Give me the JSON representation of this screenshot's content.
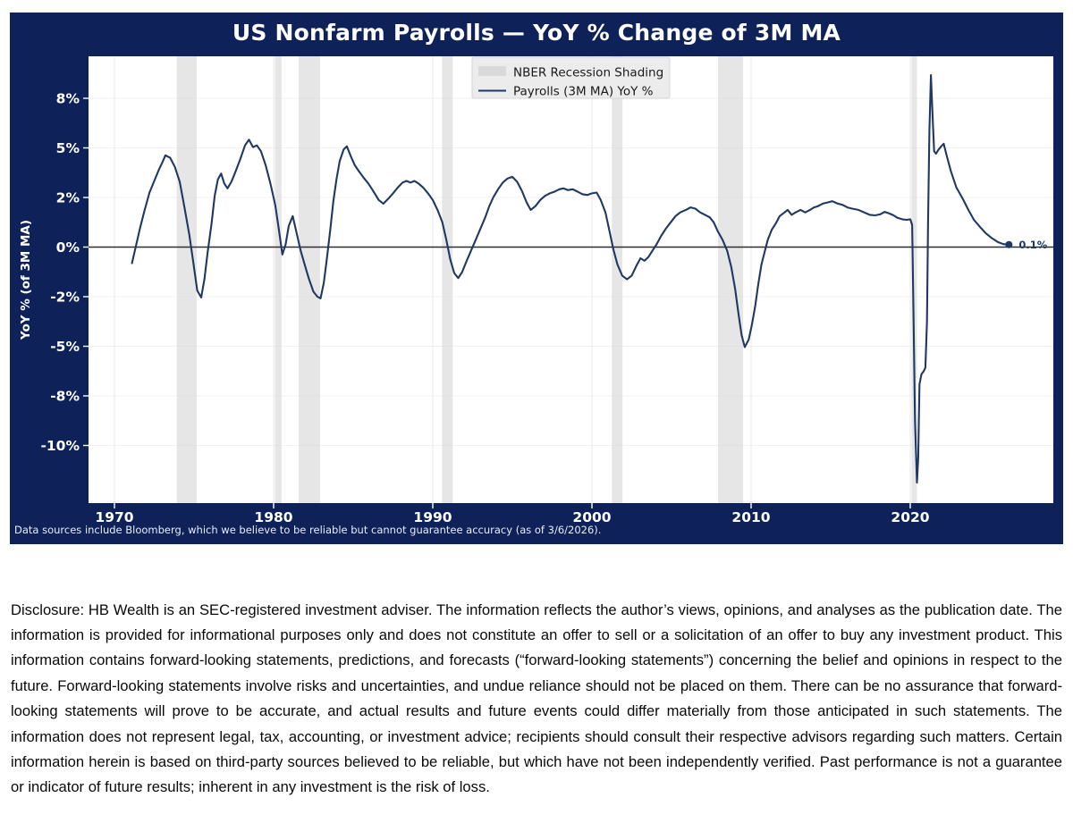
{
  "figure": {
    "title": "US Nonfarm Payrolls — YoY % Change of 3M MA",
    "footer": "Data sources include Bloomberg, which we believe to be reliable but cannot guarantee accuracy (as of 3/6/2026).",
    "colors": {
      "figure_background": "#0e2259",
      "plot_background": "#ffffff",
      "line": "#1f3864",
      "recession_band": "#d9d9d9",
      "zero_line": "#2f2f2f",
      "grid_horizontal": "#f1f1f4",
      "grid_vertical": "#e8e8e8",
      "tick_text": "#ffffff",
      "legend_background": "#ececec",
      "legend_border": "#d5d5d5",
      "legend_text": "#1a1a1a",
      "annotation_text": "#1f3864"
    }
  },
  "chart_data": {
    "type": "line",
    "title": "US Nonfarm Payrolls — YoY % Change of 3M MA",
    "xlabel": "",
    "ylabel": "YoY % (of 3M MA)",
    "x_ticks": [
      1970,
      1980,
      1990,
      2000,
      2010,
      2020
    ],
    "y_ticks": [
      8,
      5,
      2,
      0,
      -2,
      -5,
      -8,
      -10
    ],
    "y_tick_labels": [
      "8%",
      "5%",
      "2%",
      "0%",
      "-2%",
      "-5%",
      "-8%",
      "-10%"
    ],
    "x_range_years": [
      1968.4,
      2029.0
    ],
    "grid": true,
    "legend_position": "upper center",
    "legend": [
      {
        "label": "NBER Recession Shading",
        "swatch": "patch"
      },
      {
        "label": "Payrolls (3M MA) YoY %",
        "swatch": "line"
      }
    ],
    "recessions": [
      [
        1973.92,
        1975.17
      ],
      [
        1980.08,
        1980.5
      ],
      [
        1981.58,
        1982.92
      ],
      [
        1990.58,
        1991.25
      ],
      [
        2001.25,
        2001.92
      ],
      [
        2007.92,
        2009.5
      ],
      [
        2020.08,
        2020.42
      ]
    ],
    "end_annotation": {
      "label": "0.1%",
      "year": 2026.2,
      "value": 0.1
    },
    "series": [
      {
        "name": "Payrolls (3M MA) YoY %",
        "points": [
          [
            1971.1,
            -0.65
          ],
          [
            1971.3,
            -0.1
          ],
          [
            1971.6,
            0.75
          ],
          [
            1971.9,
            1.5
          ],
          [
            1972.2,
            2.3
          ],
          [
            1972.5,
            3.0
          ],
          [
            1972.8,
            3.7
          ],
          [
            1973.0,
            4.1
          ],
          [
            1973.2,
            4.55
          ],
          [
            1973.5,
            4.4
          ],
          [
            1973.8,
            3.85
          ],
          [
            1974.1,
            2.95
          ],
          [
            1974.4,
            1.6
          ],
          [
            1974.7,
            0.5
          ],
          [
            1974.95,
            -0.6
          ],
          [
            1975.2,
            -1.75
          ],
          [
            1975.45,
            -2.05
          ],
          [
            1975.65,
            -1.3
          ],
          [
            1975.85,
            -0.25
          ],
          [
            1976.1,
            0.95
          ],
          [
            1976.3,
            2.1
          ],
          [
            1976.5,
            3.1
          ],
          [
            1976.7,
            3.45
          ],
          [
            1976.9,
            2.85
          ],
          [
            1977.1,
            2.55
          ],
          [
            1977.35,
            2.95
          ],
          [
            1977.6,
            3.55
          ],
          [
            1977.9,
            4.3
          ],
          [
            1978.2,
            5.15
          ],
          [
            1978.45,
            5.5
          ],
          [
            1978.7,
            5.05
          ],
          [
            1978.95,
            5.15
          ],
          [
            1979.2,
            4.8
          ],
          [
            1979.5,
            3.95
          ],
          [
            1979.8,
            2.85
          ],
          [
            1980.1,
            1.7
          ],
          [
            1980.3,
            0.85
          ],
          [
            1980.55,
            -0.3
          ],
          [
            1980.75,
            0.1
          ],
          [
            1980.95,
            0.85
          ],
          [
            1981.2,
            1.25
          ],
          [
            1981.45,
            0.55
          ],
          [
            1981.7,
            -0.15
          ],
          [
            1981.95,
            -0.7
          ],
          [
            1982.2,
            -1.25
          ],
          [
            1982.5,
            -1.8
          ],
          [
            1982.75,
            -2.0
          ],
          [
            1982.95,
            -2.1
          ],
          [
            1983.15,
            -1.45
          ],
          [
            1983.35,
            -0.45
          ],
          [
            1983.55,
            0.65
          ],
          [
            1983.75,
            1.85
          ],
          [
            1983.95,
            3.1
          ],
          [
            1984.15,
            4.2
          ],
          [
            1984.4,
            4.9
          ],
          [
            1984.6,
            5.1
          ],
          [
            1984.85,
            4.5
          ],
          [
            1985.1,
            3.95
          ],
          [
            1985.35,
            3.6
          ],
          [
            1985.65,
            3.2
          ],
          [
            1985.95,
            2.85
          ],
          [
            1986.25,
            2.4
          ],
          [
            1986.6,
            1.9
          ],
          [
            1986.9,
            1.75
          ],
          [
            1987.2,
            1.95
          ],
          [
            1987.5,
            2.25
          ],
          [
            1987.8,
            2.6
          ],
          [
            1988.1,
            2.9
          ],
          [
            1988.35,
            3.0
          ],
          [
            1988.6,
            2.9
          ],
          [
            1988.85,
            3.0
          ],
          [
            1989.1,
            2.85
          ],
          [
            1989.4,
            2.6
          ],
          [
            1989.7,
            2.25
          ],
          [
            1990.0,
            1.9
          ],
          [
            1990.3,
            1.5
          ],
          [
            1990.6,
            1.0
          ],
          [
            1990.85,
            0.3
          ],
          [
            1991.1,
            -0.5
          ],
          [
            1991.35,
            -1.05
          ],
          [
            1991.6,
            -1.25
          ],
          [
            1991.85,
            -1.0
          ],
          [
            1992.1,
            -0.6
          ],
          [
            1992.4,
            -0.15
          ],
          [
            1992.7,
            0.3
          ],
          [
            1993.0,
            0.75
          ],
          [
            1993.3,
            1.2
          ],
          [
            1993.55,
            1.65
          ],
          [
            1993.8,
            2.0
          ],
          [
            1994.1,
            2.5
          ],
          [
            1994.4,
            2.9
          ],
          [
            1994.7,
            3.15
          ],
          [
            1995.0,
            3.25
          ],
          [
            1995.3,
            2.95
          ],
          [
            1995.6,
            2.4
          ],
          [
            1995.9,
            1.8
          ],
          [
            1996.15,
            1.5
          ],
          [
            1996.45,
            1.65
          ],
          [
            1996.75,
            1.9
          ],
          [
            1997.05,
            2.1
          ],
          [
            1997.35,
            2.25
          ],
          [
            1997.65,
            2.35
          ],
          [
            1997.95,
            2.5
          ],
          [
            1998.2,
            2.55
          ],
          [
            1998.5,
            2.45
          ],
          [
            1998.8,
            2.5
          ],
          [
            1999.1,
            2.35
          ],
          [
            1999.4,
            2.2
          ],
          [
            1999.7,
            2.15
          ],
          [
            2000.0,
            2.25
          ],
          [
            2000.3,
            2.3
          ],
          [
            2000.55,
            1.9
          ],
          [
            2000.85,
            1.4
          ],
          [
            2001.1,
            0.65
          ],
          [
            2001.35,
            -0.1
          ],
          [
            2001.6,
            -0.7
          ],
          [
            2001.9,
            -1.15
          ],
          [
            2002.2,
            -1.3
          ],
          [
            2002.5,
            -1.15
          ],
          [
            2002.8,
            -0.75
          ],
          [
            2003.05,
            -0.45
          ],
          [
            2003.3,
            -0.55
          ],
          [
            2003.55,
            -0.4
          ],
          [
            2003.8,
            -0.15
          ],
          [
            2004.05,
            0.1
          ],
          [
            2004.35,
            0.45
          ],
          [
            2004.65,
            0.75
          ],
          [
            2004.95,
            1.0
          ],
          [
            2005.25,
            1.25
          ],
          [
            2005.55,
            1.4
          ],
          [
            2005.9,
            1.5
          ],
          [
            2006.2,
            1.6
          ],
          [
            2006.5,
            1.55
          ],
          [
            2006.8,
            1.4
          ],
          [
            2007.1,
            1.3
          ],
          [
            2007.4,
            1.2
          ],
          [
            2007.65,
            1.0
          ],
          [
            2007.9,
            0.65
          ],
          [
            2008.2,
            0.3
          ],
          [
            2008.5,
            -0.15
          ],
          [
            2008.75,
            -0.8
          ],
          [
            2009.0,
            -1.7
          ],
          [
            2009.2,
            -3.0
          ],
          [
            2009.4,
            -4.3
          ],
          [
            2009.6,
            -5.05
          ],
          [
            2009.85,
            -4.6
          ],
          [
            2010.05,
            -3.7
          ],
          [
            2010.25,
            -2.6
          ],
          [
            2010.45,
            -1.5
          ],
          [
            2010.65,
            -0.7
          ],
          [
            2010.85,
            -0.2
          ],
          [
            2011.05,
            0.3
          ],
          [
            2011.3,
            0.7
          ],
          [
            2011.55,
            0.95
          ],
          [
            2011.8,
            1.25
          ],
          [
            2012.1,
            1.4
          ],
          [
            2012.3,
            1.5
          ],
          [
            2012.55,
            1.3
          ],
          [
            2012.8,
            1.4
          ],
          [
            2013.1,
            1.5
          ],
          [
            2013.4,
            1.4
          ],
          [
            2013.7,
            1.5
          ],
          [
            2013.95,
            1.6
          ],
          [
            2014.2,
            1.65
          ],
          [
            2014.5,
            1.75
          ],
          [
            2014.8,
            1.8
          ],
          [
            2015.1,
            1.85
          ],
          [
            2015.45,
            1.75
          ],
          [
            2015.75,
            1.7
          ],
          [
            2016.05,
            1.6
          ],
          [
            2016.35,
            1.55
          ],
          [
            2016.75,
            1.5
          ],
          [
            2017.1,
            1.4
          ],
          [
            2017.45,
            1.3
          ],
          [
            2017.8,
            1.28
          ],
          [
            2018.1,
            1.32
          ],
          [
            2018.4,
            1.42
          ],
          [
            2018.7,
            1.35
          ],
          [
            2018.95,
            1.28
          ],
          [
            2019.2,
            1.18
          ],
          [
            2019.5,
            1.12
          ],
          [
            2019.75,
            1.1
          ],
          [
            2020.0,
            1.12
          ],
          [
            2020.12,
            0.9
          ],
          [
            2020.2,
            -3.0
          ],
          [
            2020.3,
            -9.0
          ],
          [
            2020.42,
            -11.5
          ],
          [
            2020.5,
            -10.5
          ],
          [
            2020.58,
            -7.3
          ],
          [
            2020.7,
            -6.7
          ],
          [
            2020.85,
            -6.5
          ],
          [
            2020.95,
            -6.3
          ],
          [
            2021.05,
            -3.5
          ],
          [
            2021.12,
            1.0
          ],
          [
            2021.2,
            6.0
          ],
          [
            2021.3,
            9.4
          ],
          [
            2021.4,
            7.0
          ],
          [
            2021.5,
            4.8
          ],
          [
            2021.62,
            4.65
          ],
          [
            2021.78,
            4.9
          ],
          [
            2021.95,
            5.1
          ],
          [
            2022.1,
            5.25
          ],
          [
            2022.3,
            4.5
          ],
          [
            2022.55,
            3.6
          ],
          [
            2022.9,
            2.6
          ],
          [
            2023.3,
            1.95
          ],
          [
            2023.65,
            1.5
          ],
          [
            2024.0,
            1.1
          ],
          [
            2024.4,
            0.8
          ],
          [
            2024.75,
            0.55
          ],
          [
            2025.15,
            0.35
          ],
          [
            2025.5,
            0.2
          ],
          [
            2025.85,
            0.12
          ],
          [
            2026.2,
            0.1
          ]
        ]
      }
    ]
  },
  "disclosure": "Disclosure: HB Wealth is an SEC-registered investment adviser. The information reflects the author’s views, opinions, and analyses as the publication date. The information is provided for informational purposes only and does not constitute an offer to sell or a solicitation of an offer to buy any investment product. This information contains forward-looking statements, predictions, and forecasts (“forward-looking statements”) concerning the belief and opinions in respect to the future. Forward-looking statements involve risks and uncertainties, and undue reliance should not be placed on them. There can be no assurance that forward-looking statements will prove to be accurate, and actual results and future events could differ materially from those anticipated in such statements. The information does not represent legal, tax, accounting, or investment advice; recipients should consult their respective advisors regarding such matters. Certain information herein is based on third-party sources believed to be reliable, but which have not been independently verified. Past performance is not a guarantee or indicator of future results; inherent in any investment is the risk of loss."
}
